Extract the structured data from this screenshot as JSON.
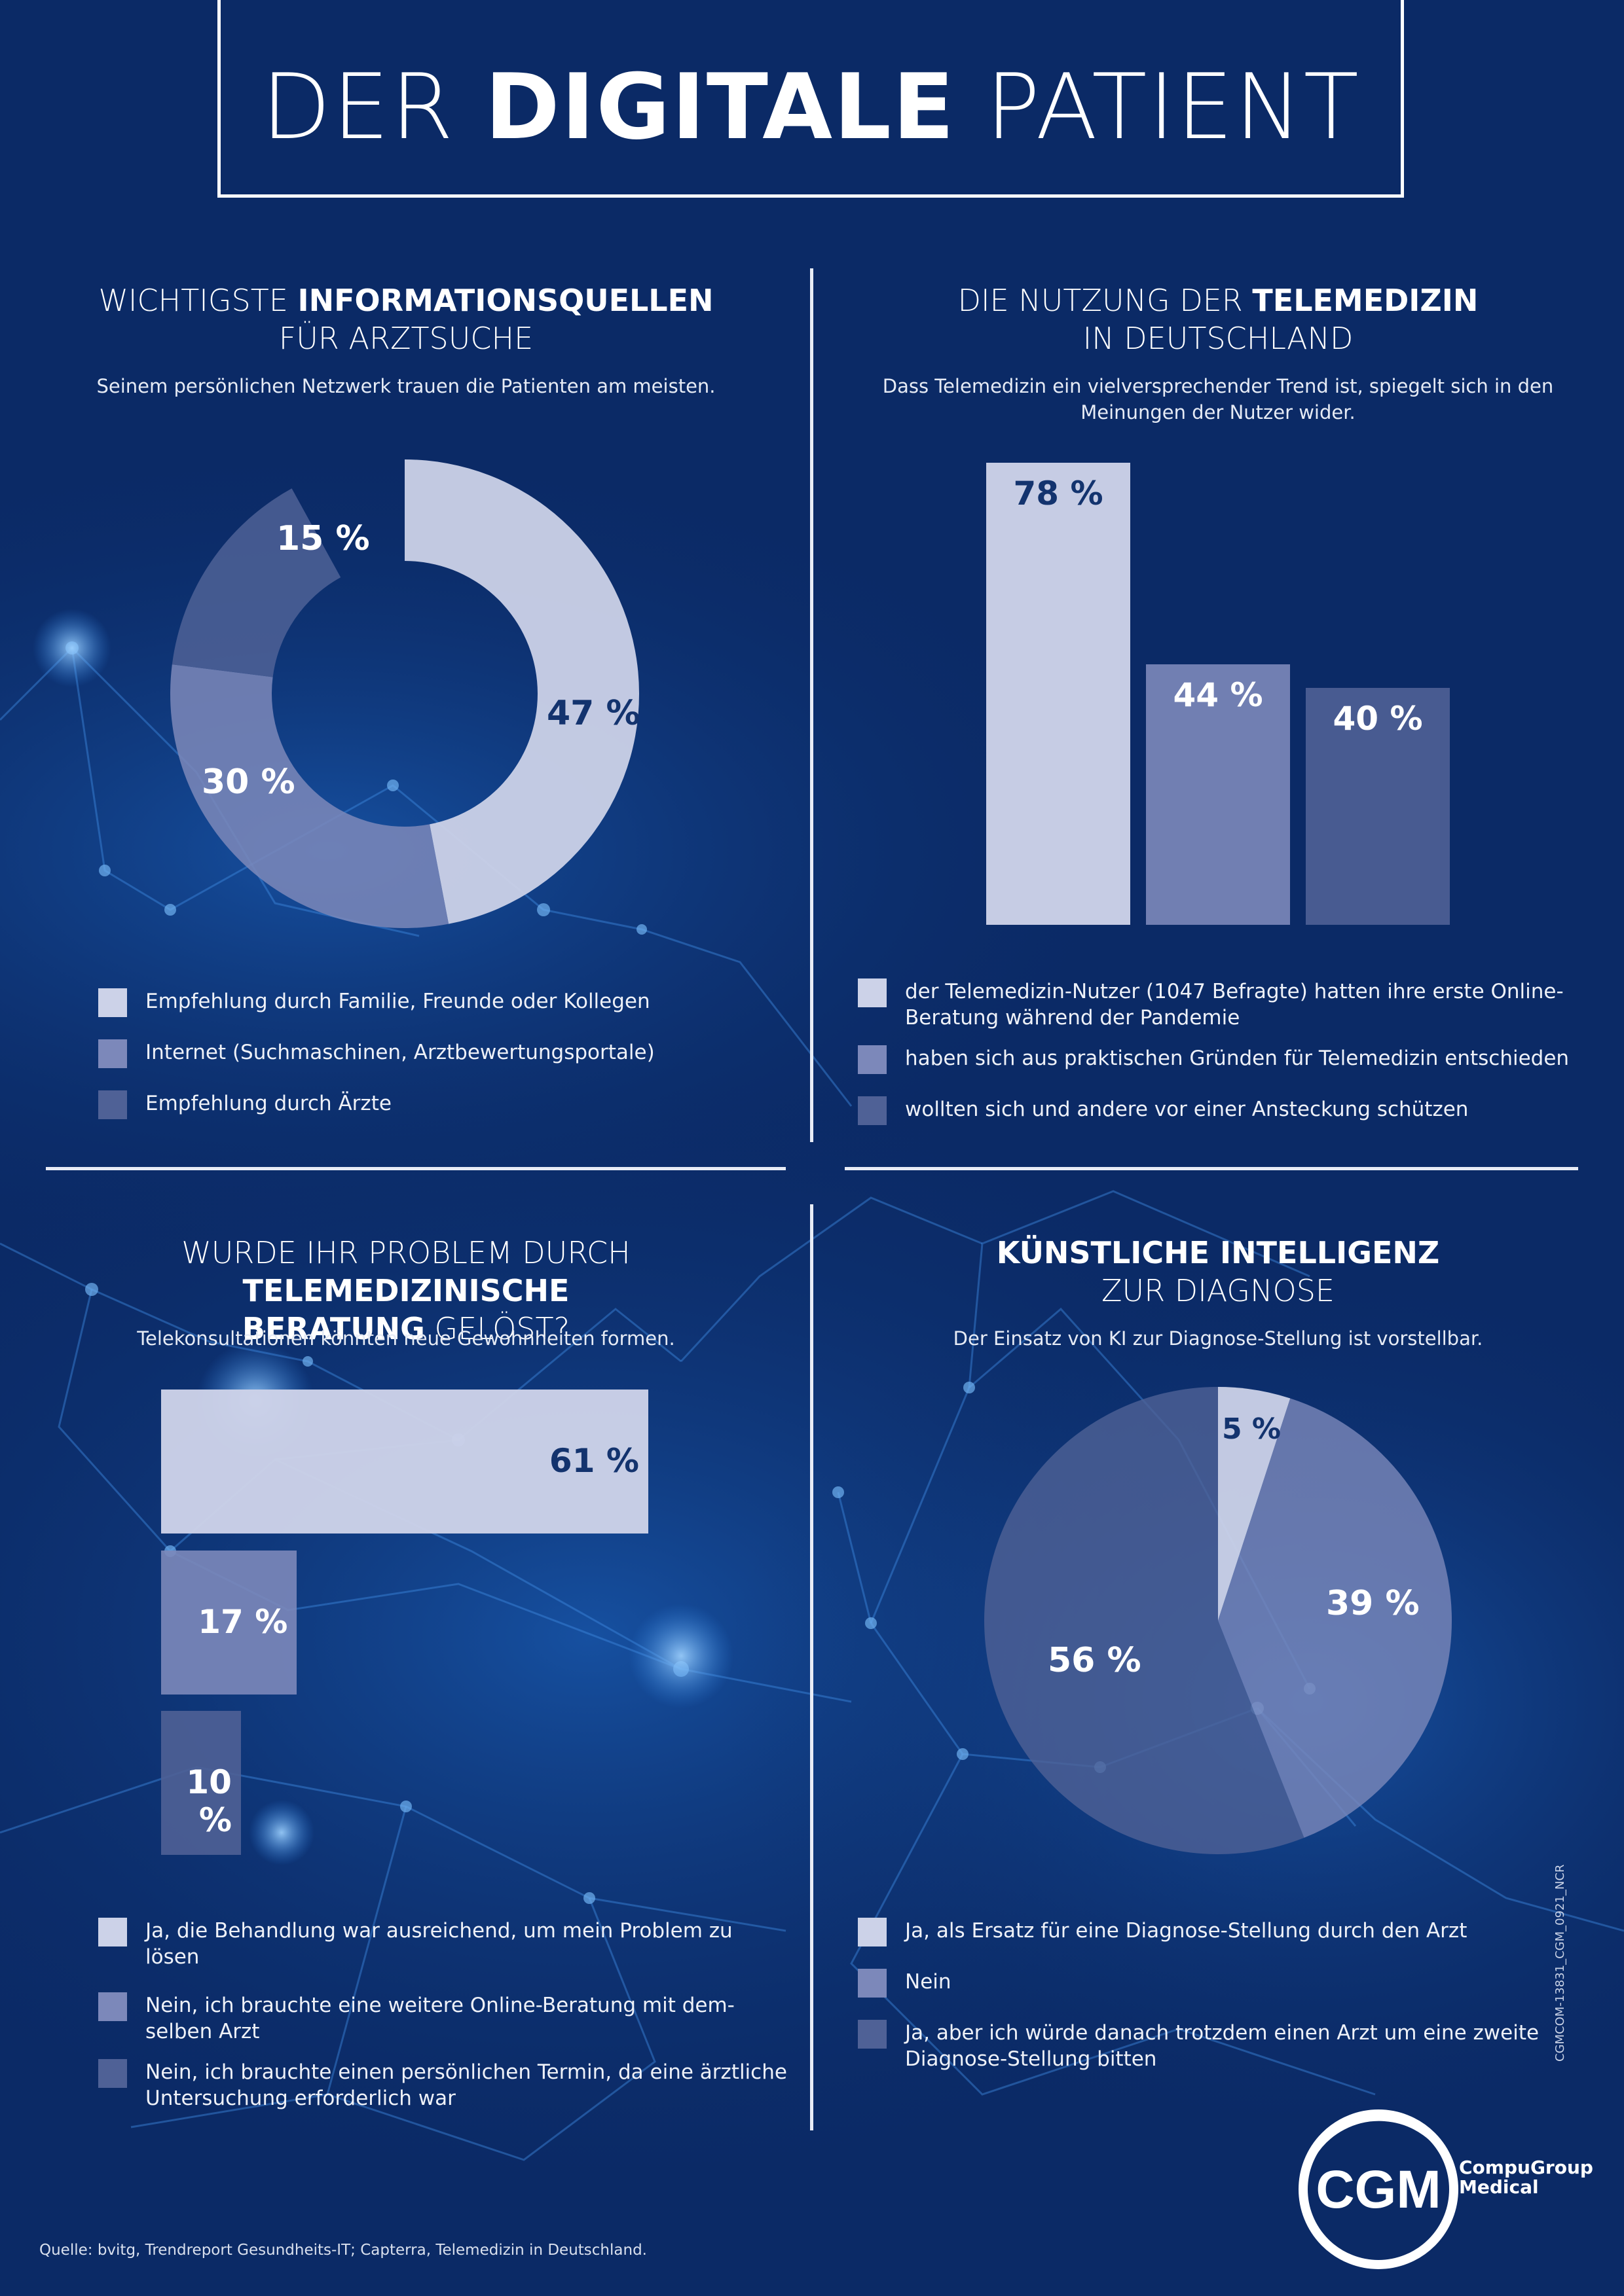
{
  "title": {
    "pre": "DER ",
    "bold": "DIGITALE",
    "post": " PATIENT"
  },
  "colors": {
    "background": "#0b2a66",
    "light": "#ccd2e8",
    "mid": "#7c88ba",
    "dark": "#4f6196",
    "accent_text": "#13336e"
  },
  "chart_data": [
    {
      "type": "pie",
      "variant": "donut",
      "title_pre": "WICHTIGSTE ",
      "title_bold": "INFORMATIONSQUELLEN",
      "title_line2": "FÜR ARZTSUCHE",
      "subtitle": "Seinem persönlichen Netzwerk trauen die Patienten am meisten.",
      "categories": [
        "Empfehlung durch Familie, Freunde oder Kollegen",
        "Internet (Suchmaschinen, Arztbewertungsportale)",
        "Empfehlung durch Ärzte"
      ],
      "values": [
        47,
        30,
        15
      ],
      "labels": [
        "47 %",
        "30 %",
        "15 %"
      ]
    },
    {
      "type": "bar",
      "title_pre": "DIE NUTZUNG DER ",
      "title_bold": "TELEMEDIZIN",
      "title_line2": "IN DEUTSCHLAND",
      "subtitle": "Dass Telemedizin ein vielversprechender Trend ist, spiegelt sich in den Meinungen der Nutzer wider.",
      "categories": [
        "der Telemedizin-Nutzer (1047 Befragte) hatten ihre erste Online-Beratung während der Pandemie",
        "haben sich aus praktischen Gründen für Telemedizin entschieden",
        "wollten sich und andere vor einer Ansteckung schützen"
      ],
      "values": [
        78,
        44,
        40
      ],
      "labels": [
        "78 %",
        "44 %",
        "40 %"
      ]
    },
    {
      "type": "bar",
      "orientation": "horizontal",
      "title_pre": "WURDE IHR PROBLEM DURCH ",
      "title_bold": "TELEMEDIZINISCHE",
      "title_line2_bold": "BERATUNG",
      "title_line2_post": " GELÖST?",
      "subtitle": "Telekonsultationen könnten neue Gewohnheiten formen.",
      "categories": [
        "Ja, die Behandlung war ausreichend, um mein Problem zu lösen",
        "Nein, ich brauchte eine weitere Online-Beratung mit dem-selben Arzt",
        "Nein, ich brauchte einen persönlichen Termin, da eine ärztliche Untersuchung erforderlich war"
      ],
      "values": [
        61,
        17,
        10
      ],
      "labels": [
        "61 %",
        "17 %",
        "10 %"
      ]
    },
    {
      "type": "pie",
      "title_bold": "KÜNSTLICHE INTELLIGENZ",
      "title_line2": "ZUR DIAGNOSE",
      "subtitle": "Der Einsatz von KI zur Diagnose-Stellung ist vorstellbar.",
      "categories": [
        "Ja, als Ersatz für eine Diagnose-Stellung durch den Arzt",
        "Nein",
        "Ja, aber ich würde danach trotzdem einen Arzt um eine zweite Diagnose-Stellung bitten"
      ],
      "values": [
        5,
        39,
        56
      ],
      "labels": [
        "5 %",
        "39 %",
        "56 %"
      ]
    }
  ],
  "logo": {
    "mark": "CGM",
    "line1": "CompuGroup",
    "line2": "Medical"
  },
  "source": "Quelle: bvitg, Trendreport Gesundheits-IT; Capterra, Telemedizin in Deutschland.",
  "code": "CGMCOM-13831_CGM_0921_NCR"
}
